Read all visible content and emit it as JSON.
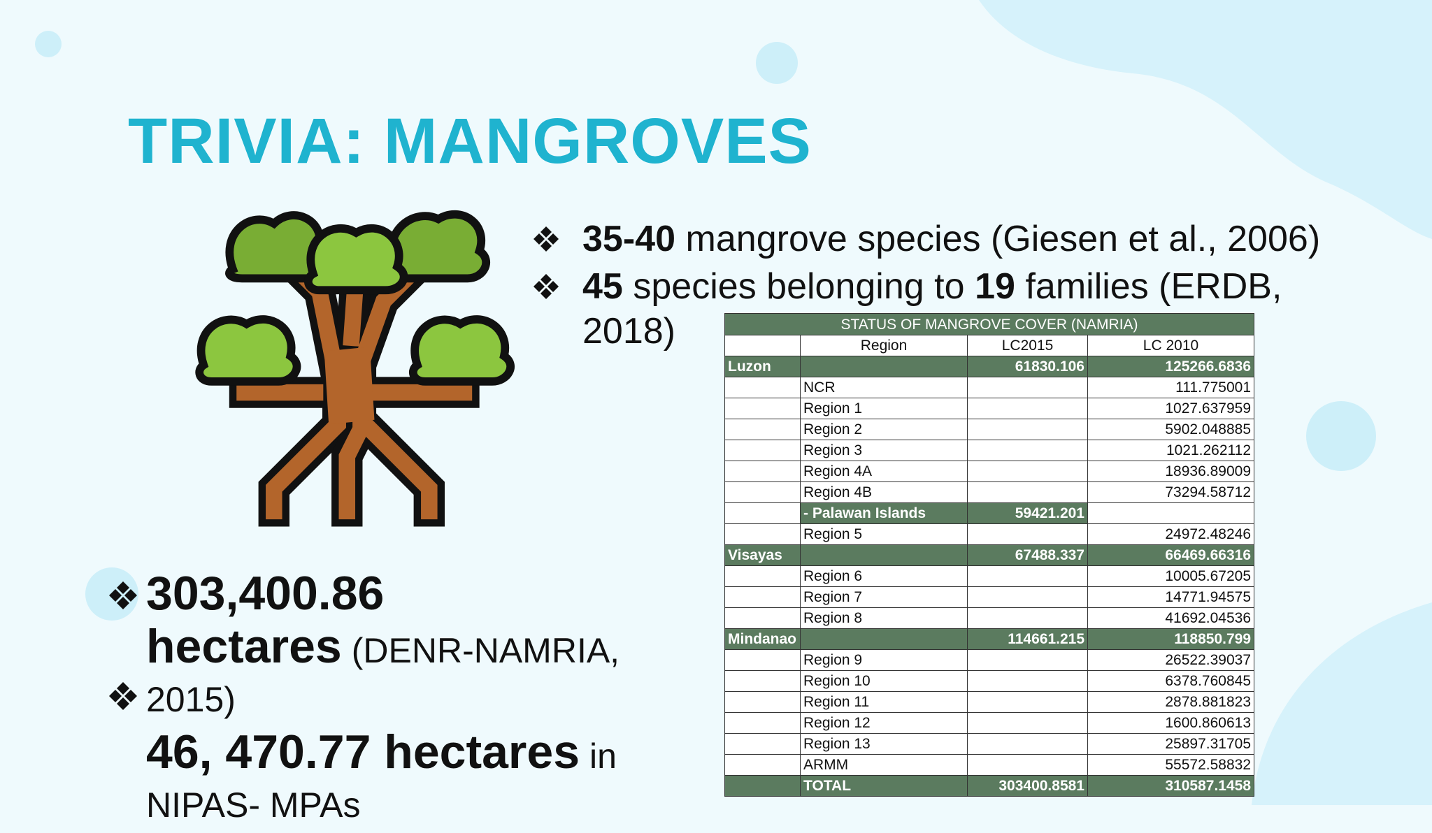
{
  "title": "TRIVIA: MANGROVES",
  "bullets_top": [
    {
      "segments": [
        {
          "text": "35-40",
          "bold": true
        },
        {
          "text": "mangrove species (Giesen et al., 2006)",
          "bold": false
        }
      ]
    },
    {
      "segments": [
        {
          "text": "45",
          "bold": true
        },
        {
          "text": "species belonging to",
          "bold": false
        },
        {
          "text": "19",
          "bold": true
        },
        {
          "text": "families (ERDB, 2018)",
          "bold": false
        }
      ]
    }
  ],
  "bullets_bottom": [
    {
      "segments": [
        {
          "text": "303,400.86 hectares",
          "bold": true
        },
        {
          "text": "(DENR-NAMRIA, 2015)",
          "bold": false
        }
      ]
    },
    {
      "segments": [
        {
          "text": "46, 470.77 hectares",
          "bold": true
        },
        {
          "text": "in NIPAS- MPAs",
          "bold": false
        }
      ]
    }
  ],
  "table": {
    "title": "STATUS OF MANGROVE COVER (NAMRIA)",
    "header": [
      null,
      "Region",
      "LC2015",
      "LC 2010"
    ],
    "rows": [
      {
        "cells": [
          "Luzon",
          null,
          "61830.106",
          "125266.6836"
        ],
        "shaded": true
      },
      {
        "cells": [
          null,
          "NCR",
          null,
          "111.775001"
        ],
        "shaded": false
      },
      {
        "cells": [
          null,
          "Region 1",
          null,
          "1027.637959"
        ],
        "shaded": false
      },
      {
        "cells": [
          null,
          "Region 2",
          null,
          "5902.048885"
        ],
        "shaded": false
      },
      {
        "cells": [
          null,
          "Region 3",
          null,
          "1021.262112"
        ],
        "shaded": false
      },
      {
        "cells": [
          null,
          "Region 4A",
          null,
          "18936.89009"
        ],
        "shaded": false
      },
      {
        "cells": [
          null,
          "Region 4B",
          null,
          "73294.58712"
        ],
        "shaded": false
      },
      {
        "cells": [
          null,
          "- Palawan Islands",
          "59421.201",
          null
        ],
        "shaded": [
          false,
          true,
          true,
          false
        ]
      },
      {
        "cells": [
          null,
          "Region 5",
          null,
          "24972.48246"
        ],
        "shaded": false
      },
      {
        "cells": [
          "Visayas",
          null,
          "67488.337",
          "66469.66316"
        ],
        "shaded": true
      },
      {
        "cells": [
          null,
          "Region 6",
          null,
          "10005.67205"
        ],
        "shaded": false
      },
      {
        "cells": [
          null,
          "Region 7",
          null,
          "14771.94575"
        ],
        "shaded": false
      },
      {
        "cells": [
          null,
          "Region 8",
          null,
          "41692.04536"
        ],
        "shaded": false
      },
      {
        "cells": [
          "Mindanao",
          null,
          "114661.215",
          "118850.799"
        ],
        "shaded": true
      },
      {
        "cells": [
          null,
          "Region 9",
          null,
          "26522.39037"
        ],
        "shaded": false
      },
      {
        "cells": [
          null,
          "Region 10",
          null,
          "6378.760845"
        ],
        "shaded": false
      },
      {
        "cells": [
          null,
          "Region 11",
          null,
          "2878.881823"
        ],
        "shaded": false
      },
      {
        "cells": [
          null,
          "Region 12",
          null,
          "1600.860613"
        ],
        "shaded": false
      },
      {
        "cells": [
          null,
          "Region 13",
          null,
          "25897.31705"
        ],
        "shaded": false
      },
      {
        "cells": [
          null,
          "ARMM",
          null,
          "55572.58832"
        ],
        "shaded": false
      },
      {
        "cells": [
          null,
          "TOTAL",
          "303400.8581",
          "310587.1458"
        ],
        "shaded": true
      }
    ]
  }
}
